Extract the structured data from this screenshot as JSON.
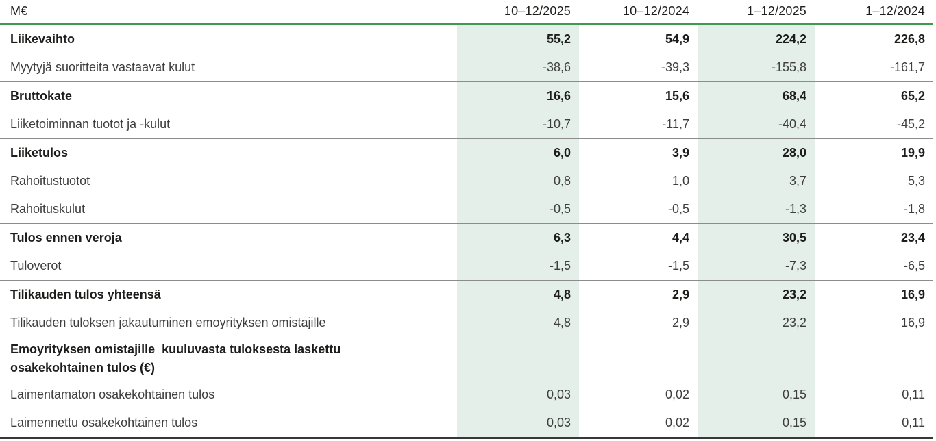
{
  "table": {
    "unit_label": "M€",
    "columns": [
      "10–12/2025",
      "10–12/2024",
      "1–12/2025",
      "1–12/2024"
    ],
    "highlighted_columns": [
      0,
      2
    ],
    "rows": [
      {
        "label": "Liikevaihto",
        "bold": true,
        "separator_above": false,
        "values": [
          "55,2",
          "54,9",
          "224,2",
          "226,8"
        ]
      },
      {
        "label": "Myytyjä suoritteita vastaavat kulut",
        "bold": false,
        "separator_above": false,
        "values": [
          "-38,6",
          "-39,3",
          "-155,8",
          "-161,7"
        ]
      },
      {
        "label": "Bruttokate",
        "bold": true,
        "separator_above": true,
        "values": [
          "16,6",
          "15,6",
          "68,4",
          "65,2"
        ]
      },
      {
        "label": "Liiketoiminnan tuotot ja -kulut",
        "bold": false,
        "separator_above": false,
        "values": [
          "-10,7",
          "-11,7",
          "-40,4",
          "-45,2"
        ]
      },
      {
        "label": "Liiketulos",
        "bold": true,
        "separator_above": true,
        "values": [
          "6,0",
          "3,9",
          "28,0",
          "19,9"
        ]
      },
      {
        "label": "Rahoitustuotot",
        "bold": false,
        "separator_above": false,
        "values": [
          "0,8",
          "1,0",
          "3,7",
          "5,3"
        ]
      },
      {
        "label": "Rahoituskulut",
        "bold": false,
        "separator_above": false,
        "values": [
          "-0,5",
          "-0,5",
          "-1,3",
          "-1,8"
        ]
      },
      {
        "label": "Tulos ennen veroja",
        "bold": true,
        "separator_above": true,
        "values": [
          "6,3",
          "4,4",
          "30,5",
          "23,4"
        ]
      },
      {
        "label": "Tuloverot",
        "bold": false,
        "separator_above": false,
        "values": [
          "-1,5",
          "-1,5",
          "-7,3",
          "-6,5"
        ]
      },
      {
        "label": "Tilikauden tulos yhteensä",
        "bold": true,
        "separator_above": true,
        "values": [
          "4,8",
          "2,9",
          "23,2",
          "16,9"
        ]
      },
      {
        "label": "Tilikauden tuloksen jakautuminen emoyrityksen omistajille",
        "bold": false,
        "separator_above": false,
        "values": [
          "4,8",
          "2,9",
          "23,2",
          "16,9"
        ]
      },
      {
        "label": "Emoyrityksen omistajille  kuuluvasta tuloksesta laskettu\nosakekohtainen tulos (€)",
        "bold": true,
        "separator_above": false,
        "values": [
          "",
          "",
          "",
          ""
        ]
      },
      {
        "label": "Laimentamaton osakekohtainen tulos",
        "bold": false,
        "separator_above": false,
        "values": [
          "0,03",
          "0,02",
          "0,15",
          "0,11"
        ]
      },
      {
        "label": "Laimennettu osakekohtainen tulos",
        "bold": false,
        "separator_above": false,
        "values": [
          "0,03",
          "0,02",
          "0,15",
          "0,11"
        ]
      }
    ],
    "colors": {
      "header_rule_green": "#3f9b4b",
      "column_highlight": "#e3efe8",
      "separator_gray": "#8c8c8c",
      "bottom_rule_dark": "#383838",
      "text_dark": "#1d1d1b",
      "text_regular": "#3e3e3d"
    }
  }
}
